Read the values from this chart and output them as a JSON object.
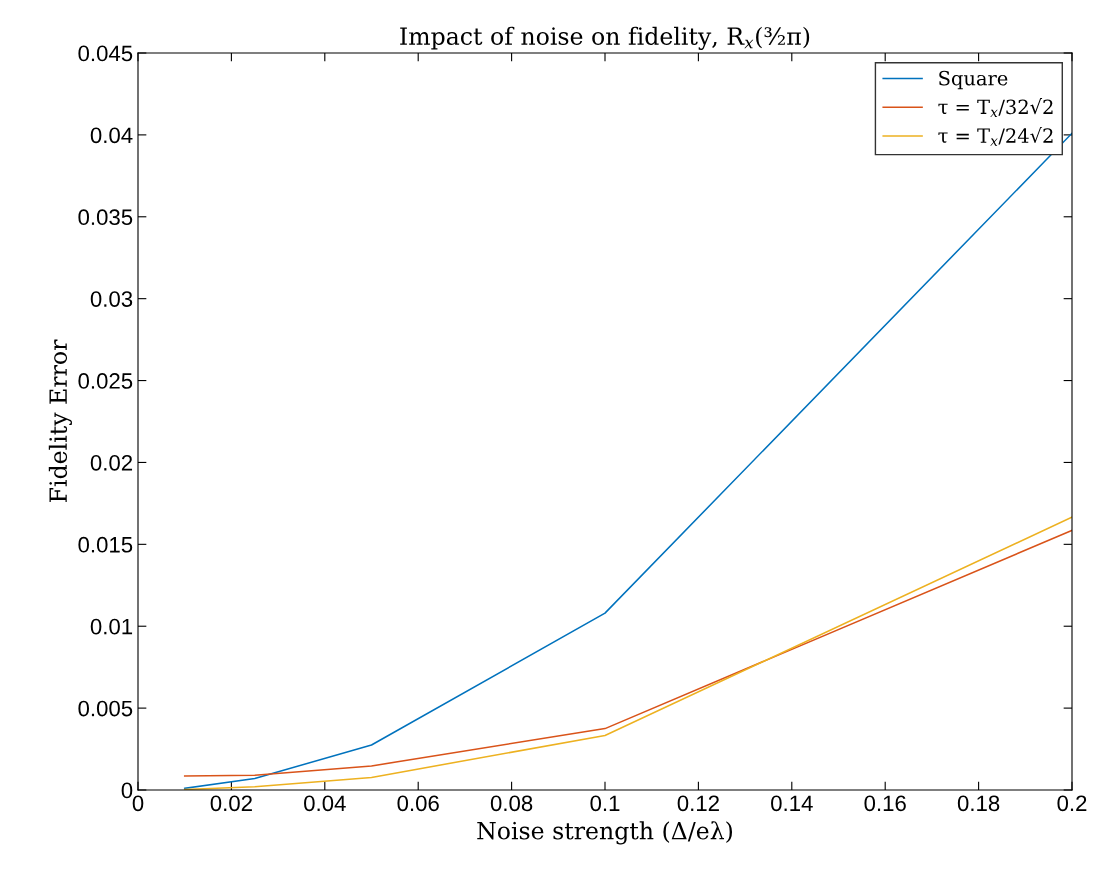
{
  "chart_data": {
    "type": "line",
    "title": "Impact of noise on fidelity, R$_{x}$(³⁄₂π)",
    "xlabel": "Noise strength (Δ/eλ)",
    "ylabel": "Fidelity Error",
    "x": [
      0.01,
      0.025,
      0.05,
      0.1,
      0.2
    ],
    "series": [
      {
        "name": "Square",
        "color": "#0072bd",
        "values": [
          0.0001,
          0.0007,
          0.00275,
          0.0108,
          0.0401
        ]
      },
      {
        "name": "τ = T$_{x}$/32√2",
        "color": "#d95319",
        "values": [
          0.00086,
          0.0009,
          0.00147,
          0.00375,
          0.01585
        ]
      },
      {
        "name": "τ = T$_{x}$/24√2",
        "color": "#edb120",
        "values": [
          3e-05,
          0.0002,
          0.00077,
          0.00333,
          0.01666
        ]
      }
    ],
    "xlim": [
      0,
      0.2
    ],
    "xticks": [
      0,
      0.02,
      0.04,
      0.06,
      0.08,
      0.1,
      0.12,
      0.14,
      0.16,
      0.18,
      0.2
    ],
    "ylim": [
      0,
      0.045
    ],
    "yticks": [
      0,
      0.005,
      0.01,
      0.015,
      0.02,
      0.025,
      0.03,
      0.035,
      0.04,
      0.045
    ],
    "grid": false,
    "legend": "top right",
    "marker": "none",
    "line_style": "solid"
  }
}
